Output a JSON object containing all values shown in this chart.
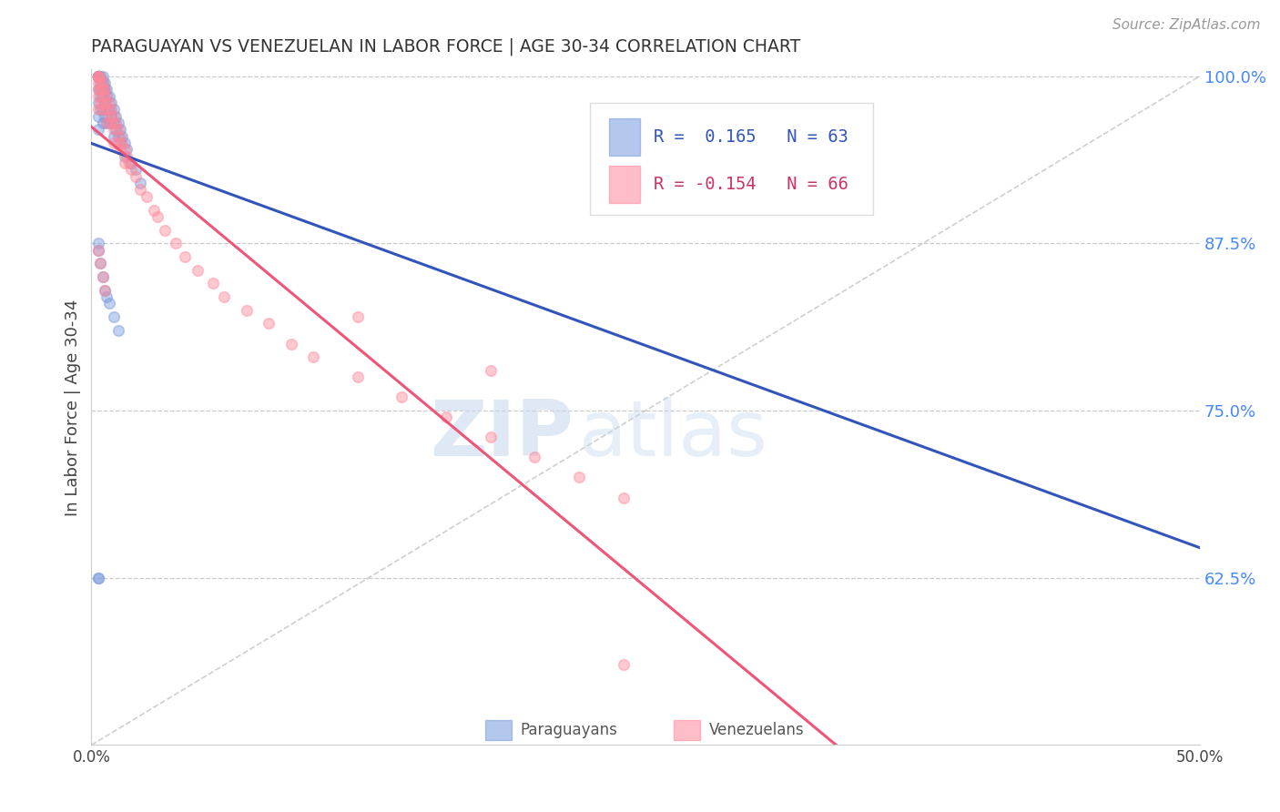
{
  "title": "PARAGUAYAN VS VENEZUELAN IN LABOR FORCE | AGE 30-34 CORRELATION CHART",
  "source_text": "Source: ZipAtlas.com",
  "ylabel": "In Labor Force | Age 30-34",
  "xlim": [
    0.0,
    0.5
  ],
  "ylim": [
    0.5,
    1.005
  ],
  "yticks_right": [
    0.625,
    0.75,
    0.875,
    1.0
  ],
  "ytick_right_labels": [
    "62.5%",
    "75.0%",
    "87.5%",
    "100.0%"
  ],
  "legend_r1_color": "#3355bb",
  "legend_r2_color": "#cc3366",
  "legend_label1": "Paraguayans",
  "legend_label2": "Venezuelans",
  "paraguayan_color": "#7799dd",
  "venezuelan_color": "#ff8899",
  "trend_blue_color": "#3355bb",
  "trend_pink_color": "#ee5577",
  "scatter_alpha": 0.45,
  "marker_size": 70,
  "paraguayan_x": [
    0.003,
    0.003,
    0.003,
    0.003,
    0.003,
    0.003,
    0.003,
    0.003,
    0.003,
    0.003,
    0.003,
    0.003,
    0.004,
    0.004,
    0.004,
    0.004,
    0.004,
    0.005,
    0.005,
    0.005,
    0.005,
    0.005,
    0.005,
    0.006,
    0.006,
    0.006,
    0.006,
    0.007,
    0.007,
    0.007,
    0.007,
    0.008,
    0.008,
    0.008,
    0.009,
    0.009,
    0.01,
    0.01,
    0.01,
    0.011,
    0.011,
    0.012,
    0.012,
    0.013,
    0.013,
    0.014,
    0.015,
    0.015,
    0.016,
    0.018,
    0.02,
    0.022,
    0.003,
    0.003,
    0.004,
    0.005,
    0.006,
    0.007,
    0.008,
    0.01,
    0.012,
    0.003,
    0.003
  ],
  "paraguayan_y": [
    1.0,
    1.0,
    1.0,
    1.0,
    1.0,
    1.0,
    1.0,
    1.0,
    0.99,
    0.98,
    0.97,
    0.96,
    1.0,
    0.995,
    0.99,
    0.985,
    0.975,
    1.0,
    0.995,
    0.99,
    0.985,
    0.975,
    0.965,
    0.995,
    0.99,
    0.98,
    0.97,
    0.99,
    0.985,
    0.975,
    0.965,
    0.985,
    0.975,
    0.965,
    0.98,
    0.97,
    0.975,
    0.965,
    0.955,
    0.97,
    0.96,
    0.965,
    0.955,
    0.96,
    0.95,
    0.955,
    0.95,
    0.94,
    0.945,
    0.935,
    0.93,
    0.92,
    0.875,
    0.87,
    0.86,
    0.85,
    0.84,
    0.835,
    0.83,
    0.82,
    0.81,
    0.625,
    0.625
  ],
  "venezuelan_x": [
    0.003,
    0.003,
    0.003,
    0.003,
    0.003,
    0.003,
    0.003,
    0.004,
    0.004,
    0.004,
    0.005,
    0.005,
    0.005,
    0.005,
    0.006,
    0.006,
    0.007,
    0.007,
    0.007,
    0.008,
    0.008,
    0.009,
    0.009,
    0.01,
    0.01,
    0.01,
    0.011,
    0.012,
    0.012,
    0.013,
    0.013,
    0.014,
    0.015,
    0.015,
    0.016,
    0.017,
    0.018,
    0.02,
    0.022,
    0.025,
    0.028,
    0.03,
    0.033,
    0.038,
    0.042,
    0.048,
    0.055,
    0.06,
    0.07,
    0.08,
    0.09,
    0.1,
    0.12,
    0.14,
    0.16,
    0.18,
    0.2,
    0.22,
    0.24,
    0.003,
    0.004,
    0.005,
    0.006,
    0.12,
    0.18,
    0.24
  ],
  "venezuelan_y": [
    1.0,
    1.0,
    1.0,
    0.995,
    0.99,
    0.985,
    0.975,
    0.998,
    0.99,
    0.98,
    0.995,
    0.99,
    0.985,
    0.975,
    0.99,
    0.98,
    0.985,
    0.975,
    0.965,
    0.98,
    0.97,
    0.975,
    0.965,
    0.97,
    0.96,
    0.95,
    0.965,
    0.96,
    0.95,
    0.955,
    0.945,
    0.95,
    0.945,
    0.935,
    0.94,
    0.935,
    0.93,
    0.925,
    0.915,
    0.91,
    0.9,
    0.895,
    0.885,
    0.875,
    0.865,
    0.855,
    0.845,
    0.835,
    0.825,
    0.815,
    0.8,
    0.79,
    0.775,
    0.76,
    0.745,
    0.73,
    0.715,
    0.7,
    0.685,
    0.87,
    0.86,
    0.85,
    0.84,
    0.82,
    0.78,
    0.56
  ],
  "watermark_zip": "ZIP",
  "watermark_atlas": "atlas",
  "background_color": "#ffffff",
  "grid_color": "#cccccc",
  "title_color": "#333333",
  "axis_label_color": "#444444",
  "right_tick_color": "#4488ff"
}
